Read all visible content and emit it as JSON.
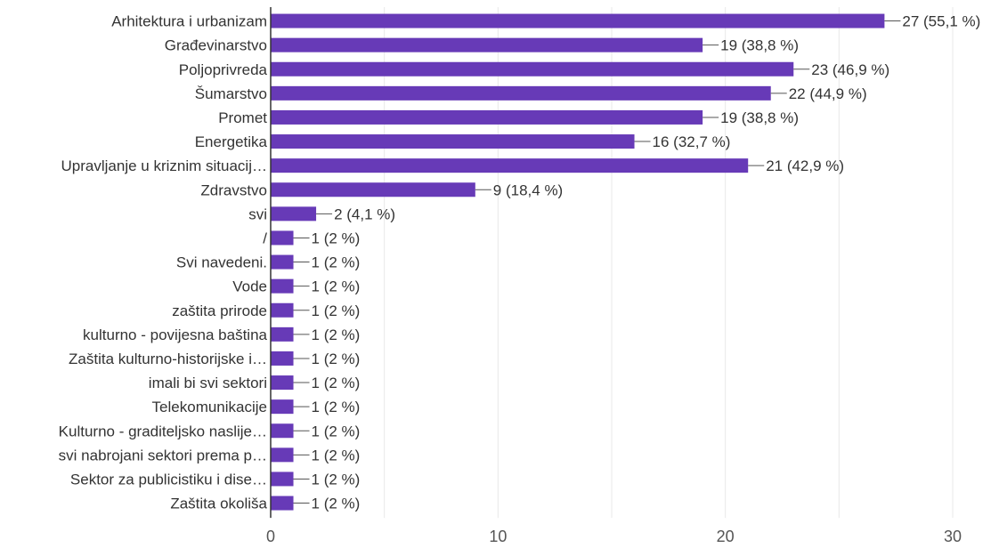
{
  "chart_data": {
    "type": "bar",
    "orientation": "horizontal",
    "categories": [
      "Arhitektura i urbanizam",
      "Građevinarstvo",
      "Poljoprivreda",
      "Šumarstvo",
      "Promet",
      "Energetika",
      "Upravljanje u kriznim situacij…",
      "Zdravstvo",
      "svi",
      "/",
      "Svi navedeni.",
      "Vode",
      "zaštita prirode",
      "kulturno - povijesna baština",
      "Zaštita kulturno-historijske i…",
      "imali bi svi sektori",
      "Telekomunikacije",
      "Kulturno - graditeljsko naslije…",
      "svi nabrojani sektori prema p…",
      "Sektor za publicistiku i dise…",
      "Zaštita okoliša"
    ],
    "values": [
      27,
      19,
      23,
      22,
      19,
      16,
      21,
      9,
      2,
      1,
      1,
      1,
      1,
      1,
      1,
      1,
      1,
      1,
      1,
      1,
      1
    ],
    "labels": [
      "27 (55,1 %)",
      "19 (38,8 %)",
      "23 (46,9 %)",
      "22 (44,9 %)",
      "19 (38,8 %)",
      "16 (32,7 %)",
      "21 (42,9 %)",
      "9 (18,4 %)",
      "2 (4,1 %)",
      "1 (2 %)",
      "1 (2 %)",
      "1 (2 %)",
      "1 (2 %)",
      "1 (2 %)",
      "1 (2 %)",
      "1 (2 %)",
      "1 (2 %)",
      "1 (2 %)",
      "1 (2 %)",
      "1 (2 %)",
      "1 (2 %)"
    ],
    "xlim": [
      0,
      30
    ],
    "xticks": [
      0,
      10,
      20,
      30
    ],
    "xtick_labels": [
      "0",
      "10",
      "20",
      "30"
    ],
    "title": "",
    "xlabel": "",
    "ylabel": "",
    "grid": true,
    "legend": "none",
    "bar_color": "#673ab7",
    "grid_color": "#e8e8e8",
    "axis_color": "#333333"
  }
}
